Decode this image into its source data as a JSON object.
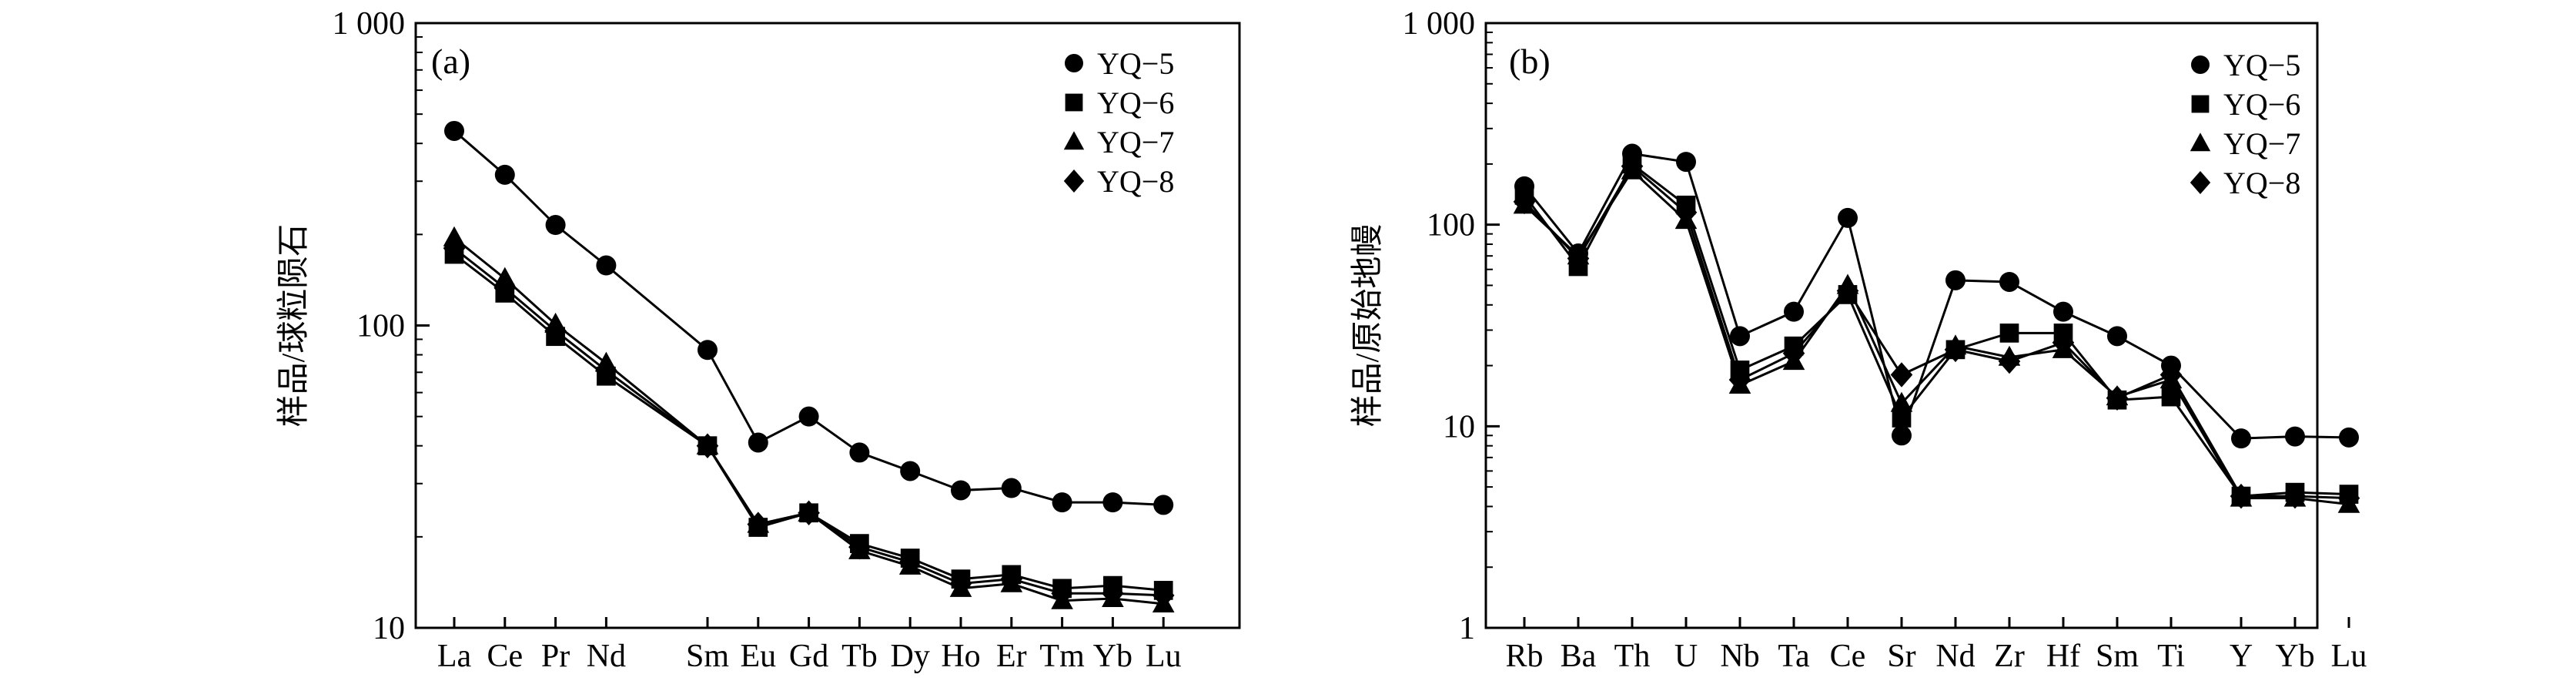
{
  "chart_data": [
    {
      "type": "line",
      "panel_label": "(a)",
      "ylabel": "样品/球粒陨石",
      "xlabel": "",
      "yscale": "log",
      "ylim": [
        10,
        1000
      ],
      "y_ticks": [
        10,
        100,
        1000
      ],
      "y_tick_labels": [
        "10",
        "100",
        "1 000"
      ],
      "categories": [
        "La",
        "Ce",
        "Pr",
        "Nd",
        "Sm",
        "Eu",
        "Gd",
        "Tb",
        "Dy",
        "Ho",
        "Er",
        "Tm",
        "Yb",
        "Lu"
      ],
      "category_index": [
        0,
        1,
        2,
        3,
        5,
        6,
        7,
        8,
        9,
        10,
        11,
        12,
        13,
        14
      ],
      "legend_position": "top-right",
      "series": [
        {
          "name": "YQ−5",
          "marker": "circle",
          "values": [
            440,
            315,
            215,
            158,
            83,
            41,
            50,
            38,
            33,
            28.5,
            29,
            26,
            26,
            25.5
          ]
        },
        {
          "name": "YQ−6",
          "marker": "square",
          "values": [
            172,
            128,
            92,
            68,
            40,
            21.5,
            24,
            19,
            17,
            14.5,
            15,
            13.5,
            13.8,
            13.3
          ]
        },
        {
          "name": "YQ−7",
          "marker": "triangle",
          "values": [
            195,
            143,
            101,
            75,
            40,
            22,
            24,
            18,
            16,
            13.5,
            14,
            12.3,
            12.5,
            12
          ]
        },
        {
          "name": "YQ−8",
          "marker": "diamond",
          "values": [
            180,
            133,
            96,
            71,
            40,
            22,
            24,
            18.5,
            16.5,
            14,
            14.5,
            13,
            13,
            12.8
          ]
        }
      ]
    },
    {
      "type": "line",
      "panel_label": "(b)",
      "ylabel": "样品/原始地幔",
      "xlabel": "",
      "yscale": "log",
      "ylim": [
        1,
        1000
      ],
      "y_ticks": [
        1,
        10,
        100,
        1000
      ],
      "y_tick_labels": [
        "1",
        "10",
        "100",
        "1 000"
      ],
      "categories": [
        "Rb",
        "Ba",
        "Th",
        "U",
        "Nb",
        "Ta",
        "Ce",
        "Sr",
        "Nd",
        "Zr",
        "Hf",
        "Sm",
        "Ti",
        "Y",
        "Yb",
        "Lu"
      ],
      "category_index": [
        0,
        1,
        2,
        3,
        4,
        5,
        6,
        7,
        8,
        9,
        10,
        11,
        12,
        13.3,
        14.3,
        15.3
      ],
      "legend_position": "top-right",
      "series": [
        {
          "name": "YQ−5",
          "marker": "circle",
          "values": [
            155,
            72,
            225,
            205,
            28,
            37,
            108,
            9,
            53,
            52,
            37,
            28,
            20,
            8.7,
            8.9,
            8.8
          ]
        },
        {
          "name": "YQ−6",
          "marker": "square",
          "values": [
            140,
            62,
            200,
            125,
            19,
            25,
            45,
            11,
            24,
            29,
            29,
            13.5,
            14,
            4.5,
            4.7,
            4.6
          ]
        },
        {
          "name": "YQ−7",
          "marker": "triangle",
          "values": [
            125,
            70,
            185,
            105,
            16,
            21,
            50,
            13,
            25,
            22,
            24,
            14,
            17,
            4.4,
            4.4,
            4.1
          ]
        },
        {
          "name": "YQ−8",
          "marker": "diamond",
          "values": [
            130,
            68,
            195,
            115,
            17,
            23,
            47,
            18,
            24,
            21,
            26,
            13.8,
            18,
            4.5,
            4.5,
            4.4
          ]
        }
      ]
    }
  ]
}
